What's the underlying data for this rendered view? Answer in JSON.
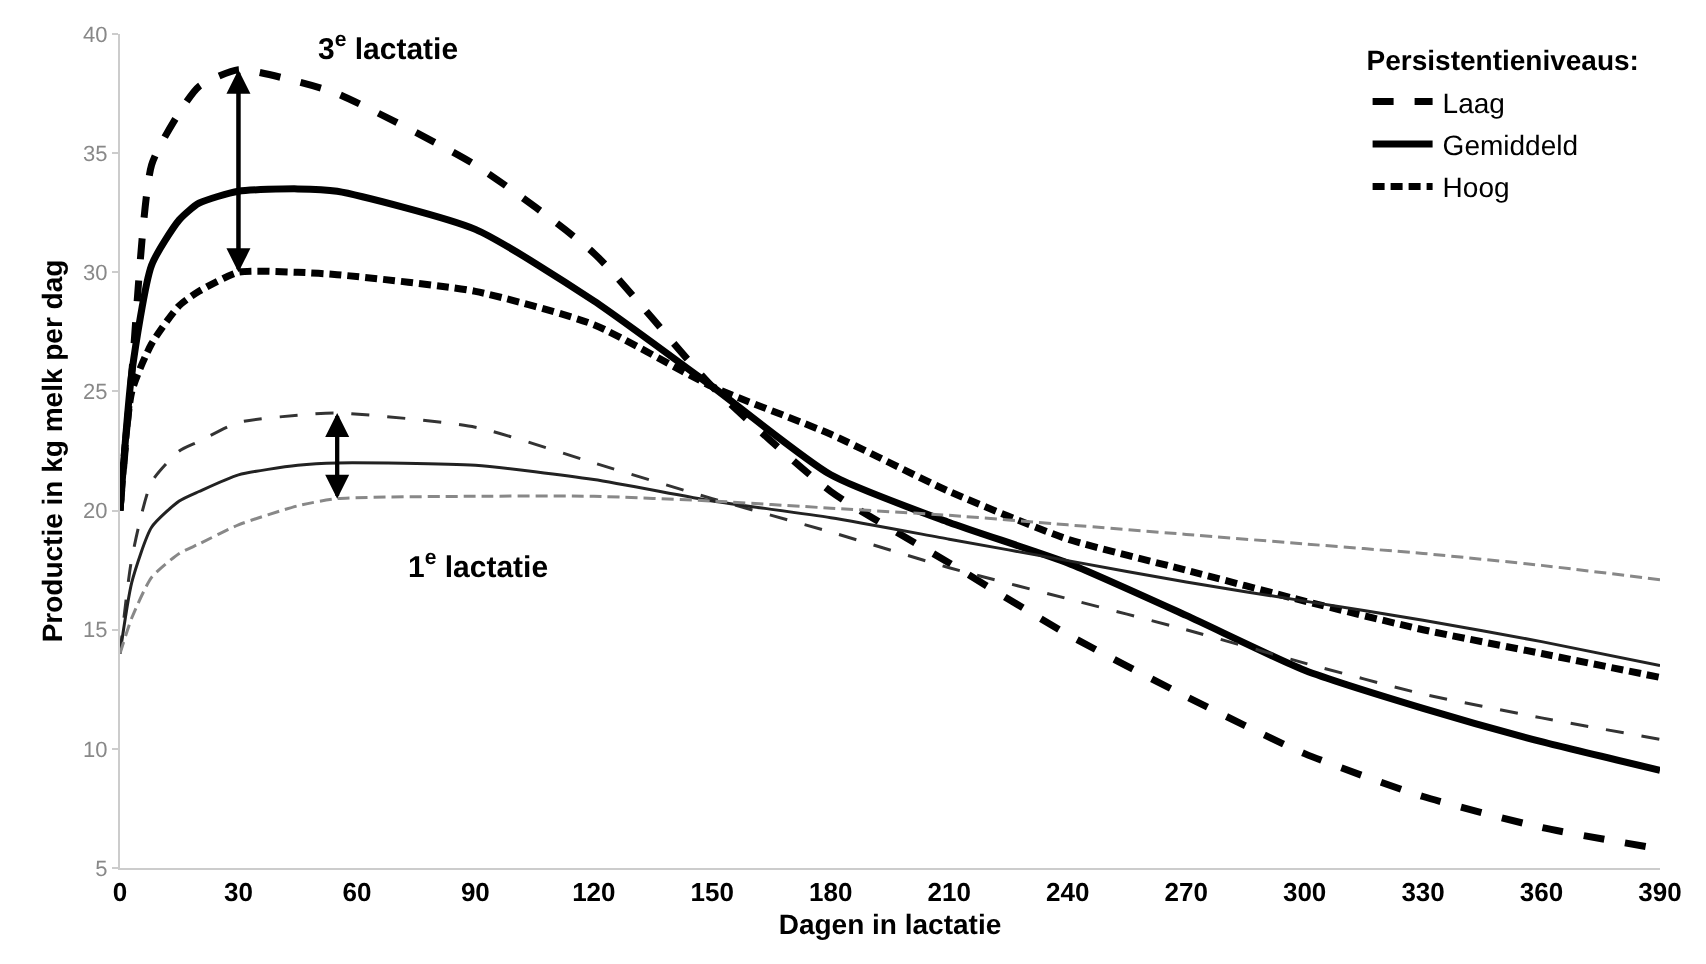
{
  "chart_data": {
    "type": "line",
    "xlabel": "Dagen in lactatie",
    "ylabel": "Productie in kg melk per dag",
    "legend_title": "Persistentieniveaus:",
    "x": [
      0,
      3,
      8,
      15,
      20,
      30,
      45,
      55,
      90,
      120,
      150,
      180,
      210,
      240,
      270,
      300,
      330,
      360,
      390
    ],
    "series": [
      {
        "name": "Laag",
        "color": "#000000",
        "line_style": "dashed",
        "values": [
          20,
          25.8,
          34.5,
          36.7,
          37.8,
          38.5,
          38.0,
          37.5,
          34.5,
          30.8,
          25.2,
          20.8,
          17.8,
          14.8,
          12.2,
          9.8,
          8.0,
          6.7,
          5.8
        ]
      },
      {
        "name": "Gemiddeld",
        "color": "#000000",
        "line_style": "solid",
        "values": [
          20,
          25.8,
          30.3,
          32.2,
          32.9,
          33.4,
          33.5,
          33.4,
          31.8,
          28.8,
          25.2,
          21.5,
          19.5,
          17.8,
          15.6,
          13.3,
          11.7,
          10.3,
          9.1
        ]
      },
      {
        "name": "Hoog",
        "color": "#000000",
        "line_style": "dotted",
        "values": [
          20,
          25.0,
          27.0,
          28.6,
          29.2,
          30.0,
          30.0,
          29.9,
          29.2,
          27.8,
          25.2,
          23.2,
          20.8,
          18.8,
          17.5,
          16.2,
          15.0,
          14.0,
          13.0
        ]
      },
      {
        "color": "#333333",
        "line_style": "dashed",
        "values": [
          14,
          18.0,
          21.2,
          22.5,
          22.9,
          23.7,
          24.0,
          24.1,
          23.5,
          22.0,
          20.5,
          19.1,
          17.6,
          16.3,
          15.0,
          13.6,
          12.3,
          11.3,
          10.4
        ]
      },
      {
        "color": "#222222",
        "line_style": "solid",
        "values": [
          14,
          17.0,
          19.3,
          20.4,
          20.8,
          21.5,
          21.9,
          22.0,
          21.9,
          21.3,
          20.4,
          19.7,
          18.8,
          17.9,
          17.0,
          16.2,
          15.4,
          14.5,
          13.5
        ]
      },
      {
        "color": "#888888",
        "line_style": "dotted",
        "values": [
          14,
          15.5,
          17.2,
          18.2,
          18.6,
          19.4,
          20.2,
          20.5,
          20.6,
          20.6,
          20.4,
          20.1,
          19.8,
          19.4,
          19.0,
          18.6,
          18.2,
          17.7,
          17.1
        ]
      }
    ],
    "annotations": [
      "3$^{e}$ lactatie",
      "1$^{e}$ lactatie"
    ],
    "xlim": [
      0,
      390
    ],
    "xticks": [
      0,
      30,
      60,
      90,
      120,
      150,
      180,
      210,
      240,
      270,
      300,
      330,
      360,
      390
    ],
    "ylim": [
      5,
      40
    ],
    "yticks": [
      5,
      10,
      15,
      20,
      25,
      30,
      35,
      40
    ],
    "legend": "top right"
  }
}
